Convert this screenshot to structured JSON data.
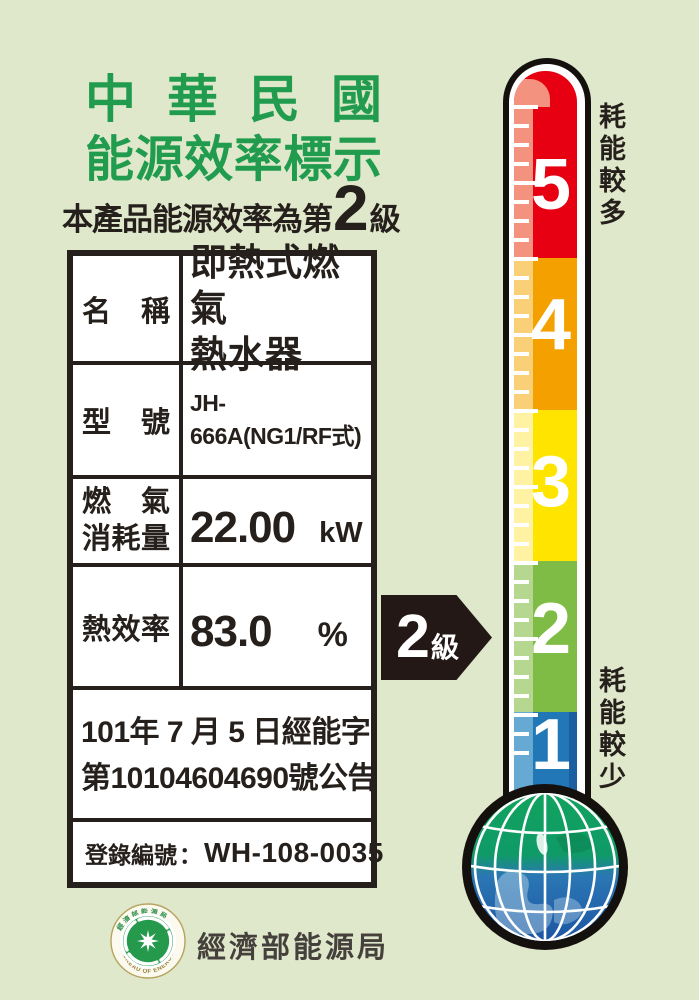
{
  "colors": {
    "background": "#dfe8cb",
    "title_green": "#219b4e",
    "text_black": "#26201c",
    "arrow_black": "#231815",
    "globe_green": "#10a35c",
    "globe_blue": "#1d55a3"
  },
  "header": {
    "title_line1": "中華民國",
    "title_line2": "能源效率標示",
    "rating_prefix": "本產品能源效率為第",
    "rating_grade": "2",
    "rating_suffix": "級"
  },
  "spec_table": {
    "name_row": {
      "label": "名稱",
      "value_line1": "即熱式燃氣",
      "value_line2": "熱水器"
    },
    "model_row": {
      "label": "型號",
      "value": "JH-666A(NG1/RF式)"
    },
    "consumption_row": {
      "label_line1": "燃氣",
      "label_line2": "消耗量",
      "value": "22.00",
      "unit": "kW"
    },
    "efficiency_row": {
      "label": "熱效率",
      "value": "83.0",
      "unit": "%"
    },
    "announcement_line1": "101年 7 月 5 日經能字",
    "announcement_line2": "第10104604690號公告",
    "registration_label": "登錄編號",
    "registration_separator": "：",
    "registration_value": "WH-108-0035"
  },
  "grade_arrow": {
    "number": "2",
    "suffix": "級"
  },
  "thermometer": {
    "label_top": "耗能較多",
    "label_bottom": "耗能較少",
    "segments": [
      {
        "grade": "5",
        "color": "#e60012",
        "light_color": "#f2927f"
      },
      {
        "grade": "4",
        "color": "#f4a100",
        "light_color": "#f9d078"
      },
      {
        "grade": "3",
        "color": "#ffe400",
        "light_color": "#fff3a3"
      },
      {
        "grade": "2",
        "color": "#7fbc45",
        "light_color": "#b6d78f"
      },
      {
        "grade": "1",
        "color": "#2278b7",
        "light_color": "#66a9d3"
      }
    ]
  },
  "footer": {
    "agency_name": "經濟部能源局",
    "logo_arc_top": "經濟部能源局",
    "logo_arc_bottom": "BUREAU OF ENERGY"
  }
}
